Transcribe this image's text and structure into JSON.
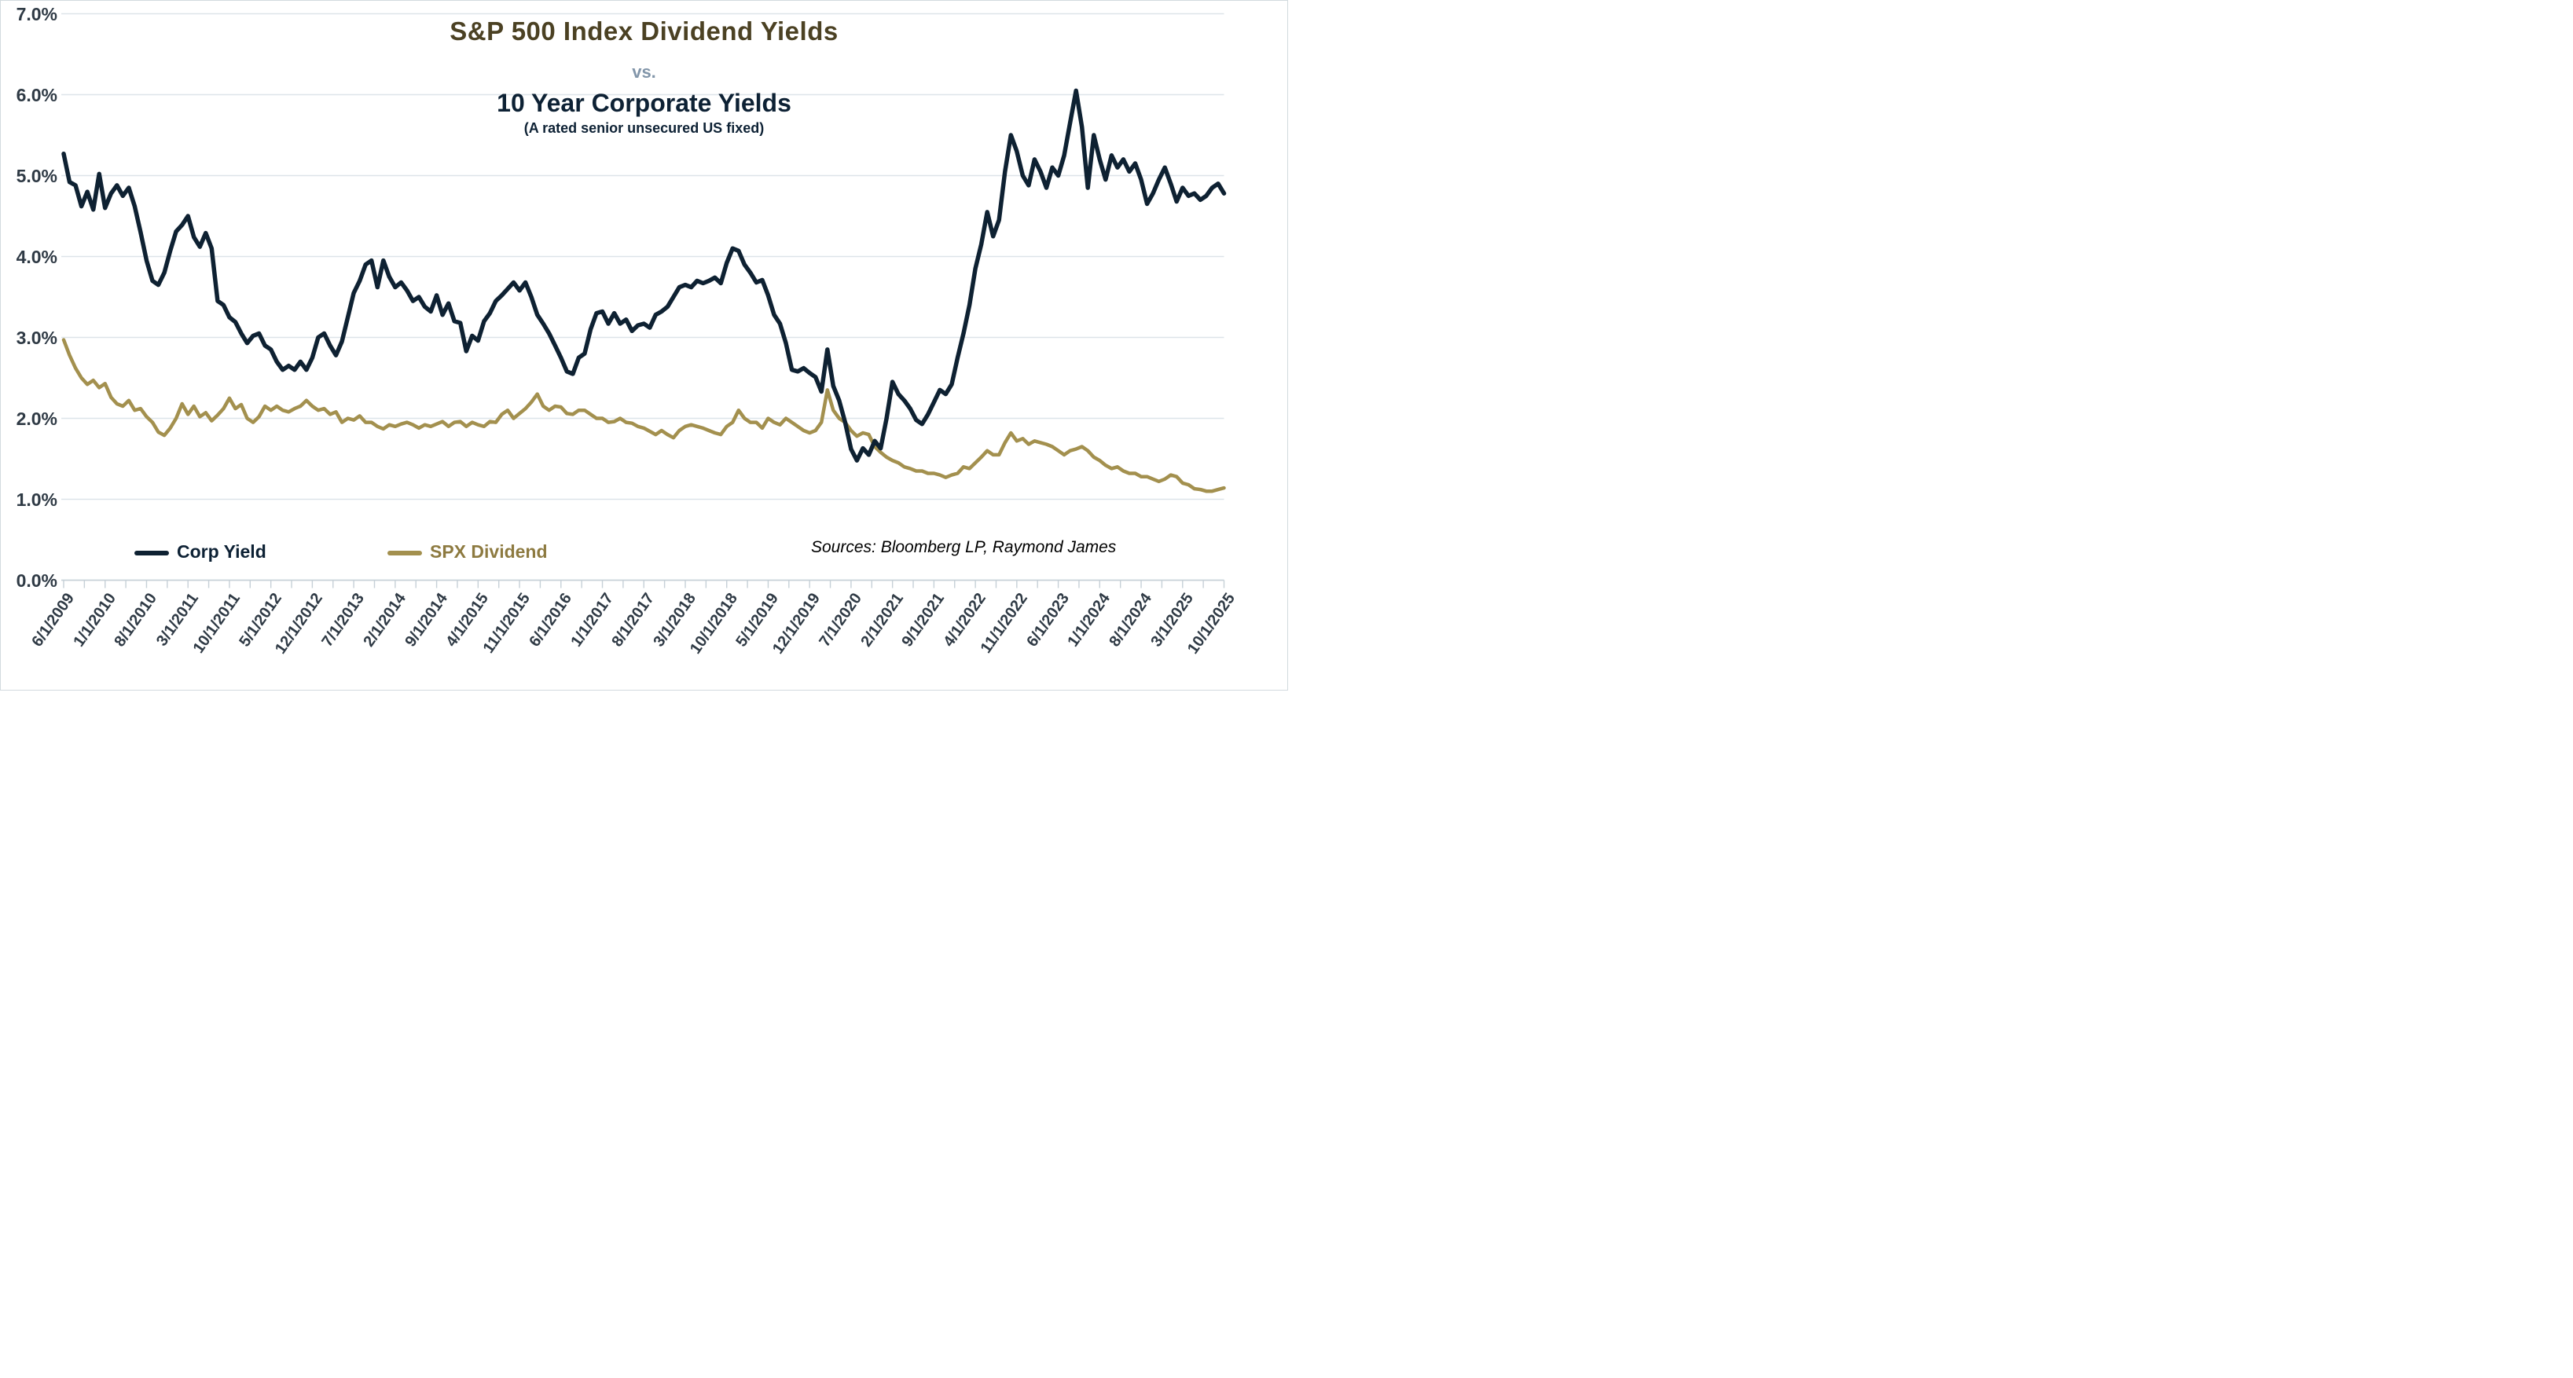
{
  "title": {
    "line1": "S&P 500 Index Dividend Yields",
    "vs": "vs.",
    "line2": "10 Year Corporate Yields",
    "subtitle": "(A rated senior unsecured US fixed)"
  },
  "sources": "Sources: Bloomberg LP, Raymond James",
  "colors": {
    "title_line1": "#4b4123",
    "title_vs": "#8195a9",
    "title_line2": "#0d2134",
    "axis_text": "#2f3a45",
    "gridline": "#dde4e9",
    "axis_line": "#c6d0d7",
    "tick": "#c6d0d7",
    "corp_line": "#0e2132",
    "spx_line": "#a3904e",
    "spx_legend_text": "#8d7a40"
  },
  "chart_data": {
    "type": "line",
    "title": "S&P 500 Index Dividend Yields vs. 10 Year Corporate Yields",
    "xlabel": "",
    "ylabel": "",
    "x_interval": "monthly",
    "x_start": "6/1/2009",
    "x_end": "10/1/2025",
    "ylim": [
      0,
      7
    ],
    "grid": "horizontal",
    "legend_position": "bottom",
    "y_tick_labels": [
      "7.0%",
      "6.0%",
      "5.0%",
      "4.0%",
      "3.0%",
      "2.0%",
      "1.0%",
      "0.0%"
    ],
    "x_tick_labels": [
      "6/1/2009",
      "1/1/2010",
      "8/1/2010",
      "3/1/2011",
      "10/1/2011",
      "5/1/2012",
      "12/1/2012",
      "7/1/2013",
      "2/1/2014",
      "9/1/2014",
      "4/1/2015",
      "11/1/2015",
      "6/1/2016",
      "1/1/2017",
      "8/1/2017",
      "3/1/2018",
      "10/1/2018",
      "5/1/2019",
      "12/1/2019",
      "7/1/2020",
      "2/1/2021",
      "9/1/2021",
      "4/1/2022",
      "11/1/2022",
      "6/1/2023",
      "1/1/2024",
      "8/1/2024",
      "3/1/2025",
      "10/1/2025"
    ],
    "x_label_every_n_months": 7,
    "series": [
      {
        "name": "SPX Dividend",
        "color": "#a3904e",
        "values": [
          2.97,
          2.78,
          2.62,
          2.5,
          2.42,
          2.47,
          2.38,
          2.43,
          2.26,
          2.18,
          2.15,
          2.22,
          2.1,
          2.12,
          2.02,
          1.95,
          1.83,
          1.79,
          1.88,
          2.0,
          2.18,
          2.05,
          2.15,
          2.02,
          2.07,
          1.97,
          2.04,
          2.12,
          2.25,
          2.12,
          2.17,
          2.0,
          1.95,
          2.02,
          2.15,
          2.1,
          2.15,
          2.1,
          2.08,
          2.12,
          2.15,
          2.22,
          2.15,
          2.1,
          2.12,
          2.05,
          2.08,
          1.95,
          2.0,
          1.98,
          2.03,
          1.95,
          1.95,
          1.9,
          1.87,
          1.92,
          1.9,
          1.93,
          1.95,
          1.92,
          1.88,
          1.92,
          1.9,
          1.93,
          1.96,
          1.9,
          1.95,
          1.96,
          1.9,
          1.95,
          1.92,
          1.9,
          1.96,
          1.95,
          2.05,
          2.1,
          2.0,
          2.06,
          2.12,
          2.2,
          2.3,
          2.15,
          2.1,
          2.15,
          2.14,
          2.06,
          2.05,
          2.1,
          2.1,
          2.05,
          2.0,
          2.0,
          1.95,
          1.96,
          2.0,
          1.95,
          1.94,
          1.9,
          1.88,
          1.84,
          1.8,
          1.85,
          1.8,
          1.76,
          1.85,
          1.9,
          1.92,
          1.9,
          1.88,
          1.85,
          1.82,
          1.8,
          1.9,
          1.95,
          2.1,
          2.0,
          1.95,
          1.95,
          1.88,
          2.0,
          1.95,
          1.92,
          2.0,
          1.95,
          1.9,
          1.85,
          1.82,
          1.85,
          1.95,
          2.35,
          2.1,
          2.0,
          1.95,
          1.85,
          1.78,
          1.82,
          1.8,
          1.65,
          1.58,
          1.52,
          1.48,
          1.45,
          1.4,
          1.38,
          1.35,
          1.35,
          1.32,
          1.32,
          1.3,
          1.27,
          1.3,
          1.32,
          1.4,
          1.38,
          1.45,
          1.52,
          1.6,
          1.55,
          1.55,
          1.7,
          1.82,
          1.72,
          1.75,
          1.68,
          1.72,
          1.7,
          1.68,
          1.65,
          1.6,
          1.55,
          1.6,
          1.62,
          1.65,
          1.6,
          1.52,
          1.48,
          1.42,
          1.38,
          1.4,
          1.35,
          1.32,
          1.32,
          1.28,
          1.28,
          1.25,
          1.22,
          1.25,
          1.3,
          1.28,
          1.2,
          1.18,
          1.13,
          1.12,
          1.1,
          1.1,
          1.12,
          1.14
        ]
      },
      {
        "name": "Corp Yield",
        "color": "#0e2132",
        "values": [
          5.27,
          4.92,
          4.88,
          4.62,
          4.8,
          4.58,
          5.02,
          4.6,
          4.78,
          4.88,
          4.75,
          4.85,
          4.62,
          4.3,
          3.95,
          3.7,
          3.65,
          3.8,
          4.07,
          4.31,
          4.39,
          4.5,
          4.24,
          4.12,
          4.29,
          4.1,
          3.45,
          3.4,
          3.25,
          3.19,
          3.05,
          2.93,
          3.02,
          3.05,
          2.9,
          2.85,
          2.7,
          2.6,
          2.65,
          2.6,
          2.7,
          2.6,
          2.75,
          3.0,
          3.05,
          2.9,
          2.78,
          2.95,
          3.25,
          3.55,
          3.7,
          3.9,
          3.95,
          3.62,
          3.95,
          3.75,
          3.62,
          3.68,
          3.58,
          3.45,
          3.5,
          3.38,
          3.32,
          3.52,
          3.28,
          3.42,
          3.2,
          3.18,
          2.83,
          3.02,
          2.96,
          3.2,
          3.3,
          3.45,
          3.52,
          3.6,
          3.68,
          3.58,
          3.68,
          3.5,
          3.28,
          3.17,
          3.05,
          2.9,
          2.75,
          2.58,
          2.55,
          2.75,
          2.8,
          3.1,
          3.3,
          3.32,
          3.17,
          3.3,
          3.17,
          3.22,
          3.08,
          3.15,
          3.17,
          3.12,
          3.28,
          3.32,
          3.38,
          3.5,
          3.62,
          3.65,
          3.62,
          3.7,
          3.67,
          3.7,
          3.74,
          3.67,
          3.92,
          4.1,
          4.07,
          3.9,
          3.8,
          3.68,
          3.71,
          3.52,
          3.28,
          3.17,
          2.93,
          2.6,
          2.58,
          2.62,
          2.56,
          2.51,
          2.33,
          2.85,
          2.4,
          2.22,
          1.95,
          1.62,
          1.48,
          1.63,
          1.55,
          1.72,
          1.63,
          2.0,
          2.45,
          2.3,
          2.22,
          2.12,
          1.98,
          1.93,
          2.05,
          2.2,
          2.35,
          2.3,
          2.42,
          2.75,
          3.05,
          3.4,
          3.85,
          4.15,
          4.55,
          4.25,
          4.45,
          5.05,
          5.5,
          5.3,
          5.0,
          4.88,
          5.2,
          5.05,
          4.85,
          5.1,
          5.0,
          5.25,
          5.65,
          6.05,
          5.6,
          4.85,
          5.5,
          5.2,
          4.95,
          5.25,
          5.1,
          5.2,
          5.05,
          5.15,
          4.95,
          4.65,
          4.78,
          4.95,
          5.1,
          4.9,
          4.68,
          4.85,
          4.75,
          4.78,
          4.7,
          4.75,
          4.85,
          4.9,
          4.78
        ]
      }
    ]
  },
  "legend": {
    "corp_label": "Corp Yield",
    "spx_label": "SPX Dividend"
  }
}
